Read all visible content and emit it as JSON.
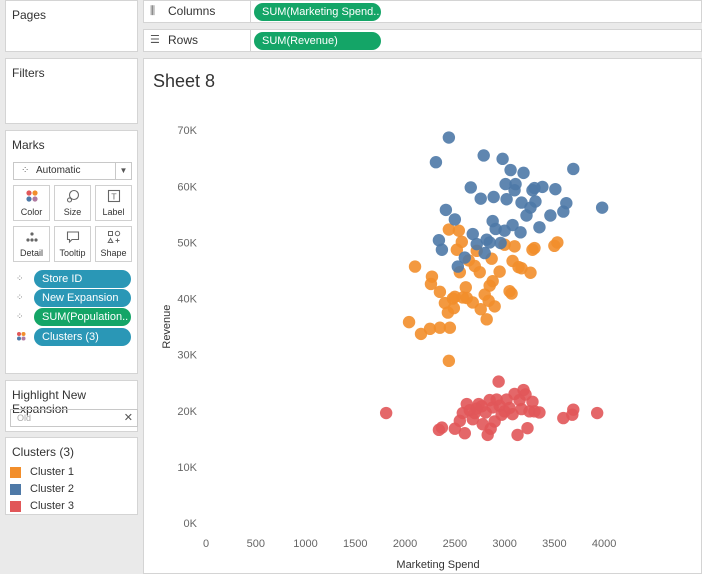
{
  "panes": {
    "pages_title": "Pages",
    "filters_title": "Filters",
    "marks_title": "Marks",
    "mark_type": "Automatic",
    "mark_buttons": [
      {
        "label": "Color",
        "icon": "color-dots-icon"
      },
      {
        "label": "Size",
        "icon": "size-icon"
      },
      {
        "label": "Label",
        "icon": "label-icon"
      },
      {
        "label": "Detail",
        "icon": "detail-icon"
      },
      {
        "label": "Tooltip",
        "icon": "tooltip-icon"
      },
      {
        "label": "Shape",
        "icon": "shape-icon"
      }
    ],
    "mark_pills": [
      {
        "label": "Store ID",
        "color": "blue",
        "icon": "detail-icon"
      },
      {
        "label": "New Expansion",
        "color": "blue",
        "icon": "detail-icon"
      },
      {
        "label": "SUM(Population..",
        "color": "green",
        "icon": "detail-icon"
      },
      {
        "label": "Clusters (3)",
        "color": "blue",
        "icon": "color-dots-icon"
      }
    ],
    "highlight_title": "Highlight New Expansion",
    "highlight_value": "Old",
    "clusters_title": "Clusters (3)",
    "legend": [
      {
        "label": "Cluster 1",
        "color": "#f28e2b"
      },
      {
        "label": "Cluster 2",
        "color": "#4e79a7"
      },
      {
        "label": "Cluster 3",
        "color": "#e15759"
      }
    ]
  },
  "shelves": {
    "columns_label": "Columns",
    "columns_pill": "SUM(Marketing Spend..",
    "rows_label": "Rows",
    "rows_pill": "SUM(Revenue)"
  },
  "sheet": {
    "title": "Sheet 8"
  },
  "chart_data": {
    "type": "scatter",
    "xlabel": "Marketing Spend",
    "ylabel": "Revenue",
    "xlim": [
      0,
      4300
    ],
    "ylim": [
      0,
      72000
    ],
    "x_ticks": [
      0,
      500,
      1000,
      1500,
      2000,
      2500,
      3000,
      3500,
      4000
    ],
    "x_tick_labels": [
      "0",
      "500",
      "1000",
      "1500",
      "2000",
      "2500",
      "3000",
      "3500",
      "4000"
    ],
    "y_ticks": [
      0,
      10000,
      20000,
      30000,
      40000,
      50000,
      60000,
      70000
    ],
    "y_tick_labels": [
      "0K",
      "10K",
      "20K",
      "30K",
      "40K",
      "50K",
      "60K",
      "70K"
    ],
    "grid": false,
    "series": [
      {
        "name": "Cluster 1",
        "color": "#f28e2b",
        "points": [
          [
            2040,
            35800
          ],
          [
            2100,
            45700
          ],
          [
            2160,
            33700
          ],
          [
            2250,
            34600
          ],
          [
            2260,
            42600
          ],
          [
            2270,
            43900
          ],
          [
            2350,
            34800
          ],
          [
            2350,
            41200
          ],
          [
            2400,
            39200
          ],
          [
            2430,
            37500
          ],
          [
            2440,
            28900
          ],
          [
            2450,
            34800
          ],
          [
            2480,
            40000
          ],
          [
            2490,
            38300
          ],
          [
            2500,
            40300
          ],
          [
            2520,
            48700
          ],
          [
            2540,
            52100
          ],
          [
            2550,
            44700
          ],
          [
            2570,
            50100
          ],
          [
            2580,
            40200
          ],
          [
            2610,
            42000
          ],
          [
            2620,
            40100
          ],
          [
            2640,
            46800
          ],
          [
            2680,
            39300
          ],
          [
            2700,
            45800
          ],
          [
            2720,
            48500
          ],
          [
            2750,
            44700
          ],
          [
            2760,
            38100
          ],
          [
            2800,
            40700
          ],
          [
            2820,
            36300
          ],
          [
            2840,
            39600
          ],
          [
            2850,
            42300
          ],
          [
            2870,
            47100
          ],
          [
            2880,
            43100
          ],
          [
            2900,
            38600
          ],
          [
            2950,
            44800
          ],
          [
            3000,
            49600
          ],
          [
            3050,
            41300
          ],
          [
            3070,
            40900
          ],
          [
            3080,
            46700
          ],
          [
            3100,
            49300
          ],
          [
            3140,
            45600
          ],
          [
            3170,
            45400
          ],
          [
            3260,
            44600
          ],
          [
            3280,
            48700
          ],
          [
            3300,
            49000
          ],
          [
            3500,
            49400
          ],
          [
            3530,
            50000
          ],
          [
            2440,
            52300
          ]
        ]
      },
      {
        "name": "Cluster 2",
        "color": "#4e79a7",
        "points": [
          [
            2310,
            64300
          ],
          [
            2340,
            50400
          ],
          [
            2370,
            48700
          ],
          [
            2410,
            55800
          ],
          [
            2440,
            68700
          ],
          [
            2500,
            54100
          ],
          [
            2530,
            45700
          ],
          [
            2600,
            47300
          ],
          [
            2660,
            59800
          ],
          [
            2680,
            51500
          ],
          [
            2720,
            49700
          ],
          [
            2760,
            57800
          ],
          [
            2790,
            65500
          ],
          [
            2800,
            48100
          ],
          [
            2820,
            50500
          ],
          [
            2850,
            50000
          ],
          [
            2880,
            53800
          ],
          [
            2890,
            58100
          ],
          [
            2910,
            52400
          ],
          [
            2960,
            49900
          ],
          [
            2980,
            64900
          ],
          [
            3000,
            52100
          ],
          [
            3020,
            57700
          ],
          [
            3060,
            62900
          ],
          [
            3080,
            53100
          ],
          [
            3100,
            59300
          ],
          [
            3110,
            60400
          ],
          [
            3160,
            51800
          ],
          [
            3170,
            57100
          ],
          [
            3190,
            62400
          ],
          [
            3220,
            54800
          ],
          [
            3260,
            56200
          ],
          [
            3280,
            59300
          ],
          [
            3300,
            59700
          ],
          [
            3310,
            57300
          ],
          [
            3350,
            52700
          ],
          [
            3380,
            59900
          ],
          [
            3460,
            54800
          ],
          [
            3510,
            59500
          ],
          [
            3590,
            55500
          ],
          [
            3620,
            57000
          ],
          [
            3690,
            63100
          ],
          [
            3980,
            56200
          ],
          [
            3010,
            60400
          ]
        ]
      },
      {
        "name": "Cluster 3",
        "color": "#e15759",
        "points": [
          [
            1810,
            19600
          ],
          [
            2340,
            16600
          ],
          [
            2370,
            17000
          ],
          [
            2500,
            16800
          ],
          [
            2550,
            18200
          ],
          [
            2580,
            19600
          ],
          [
            2600,
            16000
          ],
          [
            2620,
            21200
          ],
          [
            2650,
            20100
          ],
          [
            2680,
            18500
          ],
          [
            2700,
            19600
          ],
          [
            2720,
            20400
          ],
          [
            2740,
            21200
          ],
          [
            2780,
            17600
          ],
          [
            2810,
            19700
          ],
          [
            2830,
            15700
          ],
          [
            2860,
            16800
          ],
          [
            2880,
            20600
          ],
          [
            2900,
            18100
          ],
          [
            2920,
            22000
          ],
          [
            2940,
            25200
          ],
          [
            2950,
            20900
          ],
          [
            2970,
            19300
          ],
          [
            3000,
            19900
          ],
          [
            3020,
            22000
          ],
          [
            3050,
            20500
          ],
          [
            3080,
            19400
          ],
          [
            3100,
            23000
          ],
          [
            3130,
            15700
          ],
          [
            3150,
            21900
          ],
          [
            3170,
            20300
          ],
          [
            3190,
            23700
          ],
          [
            3210,
            22900
          ],
          [
            3230,
            16900
          ],
          [
            3250,
            19900
          ],
          [
            3280,
            21600
          ],
          [
            3300,
            19900
          ],
          [
            3350,
            19700
          ],
          [
            3590,
            18700
          ],
          [
            3680,
            19300
          ],
          [
            3690,
            20200
          ],
          [
            3930,
            19600
          ],
          [
            2770,
            20800
          ],
          [
            2850,
            21900
          ]
        ]
      }
    ]
  }
}
